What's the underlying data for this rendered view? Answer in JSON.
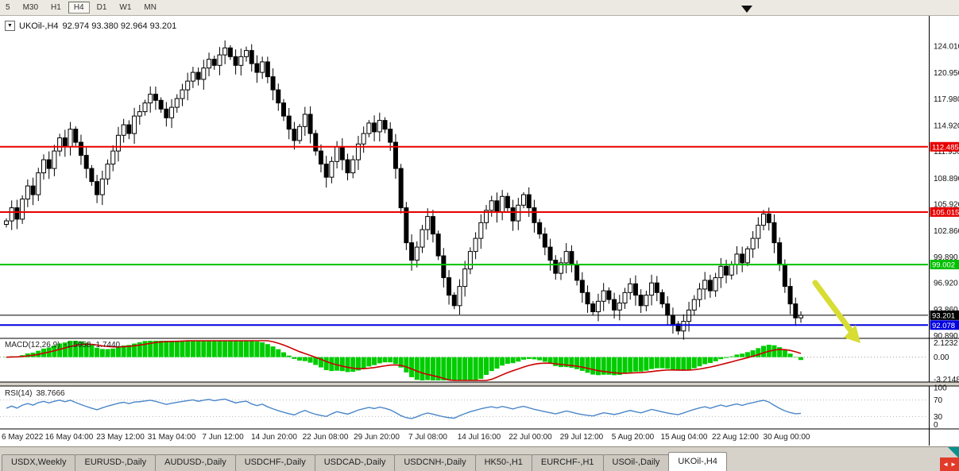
{
  "toolbar": {
    "timeframes": [
      {
        "label": "5",
        "active": false
      },
      {
        "label": "M30",
        "active": false
      },
      {
        "label": "H1",
        "active": false
      },
      {
        "label": "H4",
        "active": true
      },
      {
        "label": "D1",
        "active": false
      },
      {
        "label": "W1",
        "active": false
      },
      {
        "label": "MN",
        "active": false
      }
    ]
  },
  "chart": {
    "symbol": "UKOil-,H4",
    "ohlc": "92.974 93.380 92.964 93.201",
    "dropdown_glyph": "▼",
    "current_price": "93.201"
  },
  "price_axis": {
    "labels": [
      "124.010",
      "120.950",
      "117.980",
      "114.920",
      "111.950",
      "108.890",
      "105.920",
      "102.860",
      "99.890",
      "96.920",
      "93.860",
      "90.890"
    ]
  },
  "hlines": [
    {
      "label": "112.485",
      "price": 112.485,
      "color": "#e80000",
      "line_width": 2
    },
    {
      "label": "105.015",
      "price": 105.015,
      "color": "#e80000",
      "line_width": 2
    },
    {
      "label": "99.002",
      "price": 99.002,
      "color": "#00c000",
      "line_width": 2
    },
    {
      "label": "93.201",
      "price": 93.201,
      "color": "#000000",
      "line_width": 1
    },
    {
      "label": "92.078",
      "price": 92.078,
      "color": "#0000e0",
      "line_width": 2
    }
  ],
  "macd": {
    "label": "MACD(12,26,9)",
    "values": "-1.5958 -1.7440",
    "axis_labels": [
      "2.1232",
      "0.00",
      "-3.2148"
    ],
    "axis_values": [
      2.1232,
      0.0,
      -3.2148
    ],
    "histogram_color": "#00cc00",
    "signal_color": "#cc0000"
  },
  "rsi": {
    "label": "RSI(14)",
    "value": "38.7666",
    "axis_labels": [
      "100",
      "70",
      "30",
      "0"
    ],
    "axis_values": [
      100,
      70,
      30,
      0
    ],
    "levels": [
      70,
      30
    ],
    "line_color": "#4a86c8"
  },
  "time_axis": {
    "labels": [
      "6 May 2022",
      "16 May 04:00",
      "23 May 12:00",
      "31 May 04:00",
      "7 Jun 12:00",
      "14 Jun 20:00",
      "22 Jun 08:00",
      "29 Jun 20:00",
      "7 Jul 08:00",
      "14 Jul 16:00",
      "22 Jul 00:00",
      "29 Jul 12:00",
      "5 Aug 20:00",
      "15 Aug 04:00",
      "22 Aug 12:00",
      "30 Aug 00:00"
    ]
  },
  "tabs": {
    "items": [
      {
        "label": "USDX,Weekly",
        "active": false
      },
      {
        "label": "EURUSD-,Daily",
        "active": false
      },
      {
        "label": "AUDUSD-,Daily",
        "active": false
      },
      {
        "label": "USDCHF-,Daily",
        "active": false
      },
      {
        "label": "USDCAD-,Daily",
        "active": false
      },
      {
        "label": "USDCNH-,Daily",
        "active": false
      },
      {
        "label": "HK50-,H1",
        "active": false
      },
      {
        "label": "EURCHF-,H1",
        "active": false
      },
      {
        "label": "USOil-,Daily",
        "active": false
      },
      {
        "label": "UKOil-,H4",
        "active": true
      }
    ],
    "nav_left": "◄",
    "nav_right": "►"
  },
  "annotation": {
    "arrow_color": "#d7dd33"
  },
  "chart_data": {
    "type": "candlestick",
    "symbol": "UKOil-",
    "timeframe": "H4",
    "title": "UKOil-,H4 92.974 93.380 92.964 93.201",
    "ylim": [
      90.89,
      124.01
    ],
    "x_labels": [
      "6 May 2022",
      "16 May 04:00",
      "23 May 12:00",
      "31 May 04:00",
      "7 Jun 12:00",
      "14 Jun 20:00",
      "22 Jun 08:00",
      "29 Jun 20:00",
      "7 Jul 08:00",
      "14 Jul 16:00",
      "22 Jul 00:00",
      "29 Jul 12:00",
      "5 Aug 20:00",
      "15 Aug 04:00",
      "22 Aug 12:00",
      "30 Aug 00:00"
    ],
    "closes": [
      104.0,
      105.5,
      104.2,
      106.5,
      108.0,
      107.0,
      109.5,
      111.0,
      110.0,
      112.0,
      113.5,
      112.5,
      114.5,
      113.0,
      111.5,
      110.0,
      108.5,
      107.0,
      108.8,
      110.5,
      112.0,
      113.8,
      115.0,
      114.0,
      116.0,
      116.5,
      117.5,
      118.5,
      117.8,
      116.8,
      115.8,
      117.0,
      118.0,
      119.0,
      120.0,
      121.0,
      120.2,
      121.5,
      122.5,
      121.8,
      123.0,
      123.8,
      122.8,
      121.8,
      122.8,
      123.5,
      122.0,
      121.0,
      122.2,
      120.5,
      119.0,
      117.5,
      116.0,
      114.5,
      113.2,
      114.8,
      116.2,
      114.0,
      112.0,
      110.5,
      109.0,
      110.8,
      112.5,
      111.0,
      109.5,
      111.0,
      112.8,
      114.0,
      115.2,
      114.2,
      115.5,
      114.5,
      113.0,
      110.0,
      105.5,
      101.5,
      99.5,
      101.0,
      103.0,
      104.5,
      102.5,
      100.0,
      97.5,
      95.5,
      94.3,
      96.5,
      98.5,
      100.5,
      102.0,
      103.8,
      105.2,
      106.3,
      105.0,
      106.8,
      105.5,
      104.0,
      105.8,
      107.0,
      105.5,
      103.8,
      102.5,
      101.0,
      99.5,
      98.0,
      99.2,
      100.5,
      99.0,
      97.2,
      95.8,
      94.5,
      93.6,
      94.8,
      96.0,
      95.0,
      93.8,
      94.6,
      95.8,
      96.8,
      95.5,
      94.3,
      95.5,
      96.9,
      95.8,
      94.5,
      93.2,
      92.2,
      91.4,
      92.5,
      93.8,
      95.0,
      96.2,
      97.2,
      96.0,
      97.5,
      98.8,
      97.8,
      99.0,
      100.2,
      99.2,
      100.8,
      102.0,
      103.5,
      104.8,
      103.8,
      101.5,
      99.0,
      96.5,
      94.5,
      92.9,
      93.2
    ],
    "hlines": [
      112.485,
      105.015,
      99.002,
      93.201,
      92.078
    ],
    "indicators": [
      {
        "name": "MACD",
        "params": [
          12,
          26,
          9
        ],
        "last_values": [
          -1.5958,
          -1.744
        ],
        "axis_range": [
          -3.2148,
          2.1232
        ]
      },
      {
        "name": "RSI",
        "params": [
          14
        ],
        "last_value": 38.7666,
        "axis_range": [
          0,
          100
        ]
      }
    ]
  }
}
